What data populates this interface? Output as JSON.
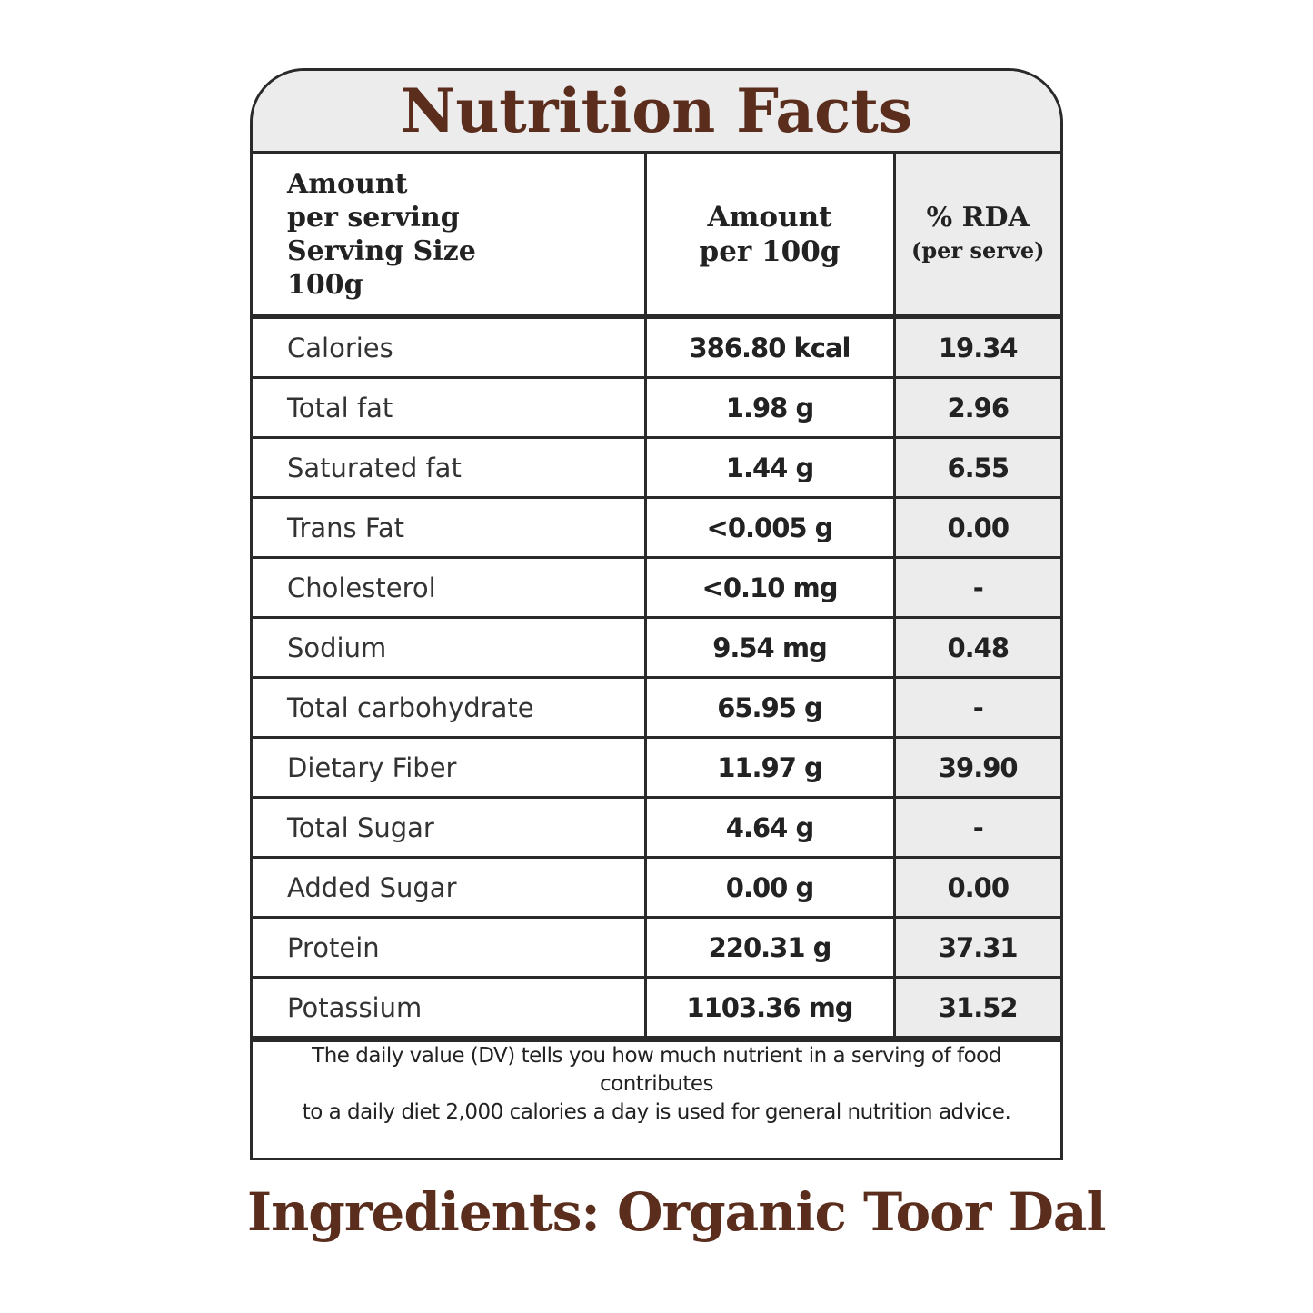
{
  "title": "Nutrition Facts",
  "header": {
    "col1": [
      "Amount",
      "per serving",
      "Serving Size",
      "100g"
    ],
    "col2": [
      "Amount",
      "per 100g"
    ],
    "col3_main": "% RDA",
    "col3_sub": "(per serve)"
  },
  "rows": [
    {
      "name": "Calories",
      "amount": "386.80 kcal",
      "rda": "19.34"
    },
    {
      "name": "Total fat",
      "amount": "1.98 g",
      "rda": "2.96"
    },
    {
      "name": "Saturated fat",
      "amount": "1.44 g",
      "rda": "6.55"
    },
    {
      "name": "Trans Fat",
      "amount": "<0.005 g",
      "rda": "0.00"
    },
    {
      "name": "Cholesterol",
      "amount": "<0.10 mg",
      "rda": "-"
    },
    {
      "name": "Sodium",
      "amount": "9.54 mg",
      "rda": "0.48"
    },
    {
      "name": "Total carbohydrate",
      "amount": "65.95 g",
      "rda": "-"
    },
    {
      "name": "Dietary Fiber",
      "amount": "11.97 g",
      "rda": "39.90"
    },
    {
      "name": "Total Sugar",
      "amount": "4.64 g",
      "rda": "-"
    },
    {
      "name": "Added Sugar",
      "amount": "0.00 g",
      "rda": "0.00"
    },
    {
      "name": "Protein",
      "amount": "220.31 g",
      "rda": "37.31"
    },
    {
      "name": "Potassium",
      "amount": "1103.36 mg",
      "rda": "31.52"
    }
  ],
  "footnote": [
    "The daily value (DV) tells you how much nutrient in a serving of food contributes",
    "to a daily diet 2,000 calories a day is used for general nutrition advice."
  ],
  "ingredients": "Ingredients: Organic Toor Dal",
  "colors": {
    "title": "#5a2d1d",
    "border": "#2a2a2a",
    "shade": "#ececec"
  }
}
